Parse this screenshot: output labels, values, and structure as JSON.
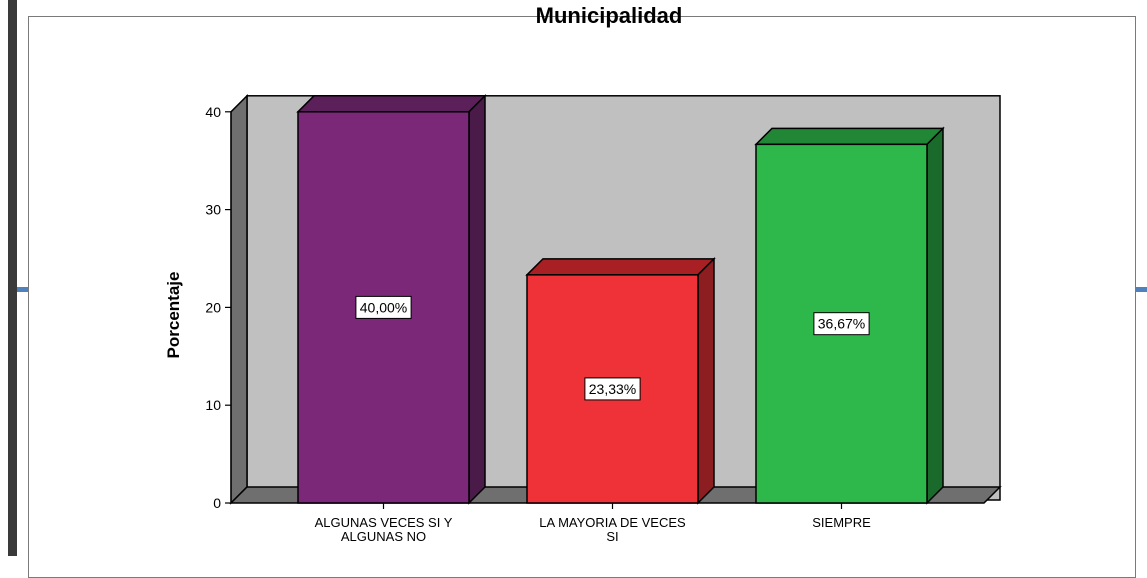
{
  "window": {
    "title": "Municipalidad"
  },
  "chart_data": {
    "type": "bar",
    "title": "Municipalidad",
    "xlabel": "",
    "ylabel": "Porcentaje",
    "ylim": [
      0,
      40
    ],
    "yticks": [
      0,
      10,
      20,
      30,
      40
    ],
    "ytick_labels": [
      "0",
      "10",
      "20",
      "30",
      "40"
    ],
    "categories": [
      "ALGUNAS VECES SI Y ALGUNAS NO",
      "LA MAYORIA DE VECES SI",
      "SIEMPRE"
    ],
    "category_lines": [
      [
        "ALGUNAS VECES SI Y",
        "ALGUNAS NO"
      ],
      [
        "LA MAYORIA DE VECES",
        "SI"
      ],
      [
        "SIEMPRE"
      ]
    ],
    "values": [
      40.0,
      23.33,
      36.67
    ],
    "data_labels": [
      "40,00%",
      "23,33%",
      "36,67%"
    ],
    "colors": [
      {
        "front": "#7b2878",
        "side": "#4a1a49",
        "top": "#5b1f59"
      },
      {
        "front": "#ef3237",
        "side": "#8c1d21",
        "top": "#a81f24"
      },
      {
        "front": "#2eb84b",
        "side": "#1a6a2b",
        "top": "#218636"
      }
    ],
    "background": "#c0c0c0",
    "grid": false,
    "legend": "none"
  }
}
